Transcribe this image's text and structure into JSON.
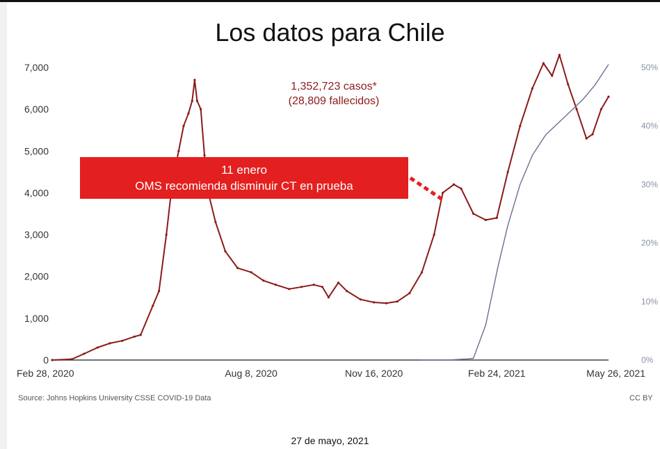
{
  "page": {
    "footer_date": "27 de mayo, 2021",
    "source": "Source: Johns Hopkins University CSSE COVID-19 Data",
    "license": "CC BY"
  },
  "chart_data": {
    "type": "line",
    "title": "Los datos para Chile",
    "annotation_cases": "1,352,723 casos*",
    "annotation_deaths": "(28,809 fallecidos)",
    "callout_line1": "11 enero",
    "callout_line2": "OMS recomienda disminuir CT en prueba",
    "x_ticks": [
      "Feb 28, 2020",
      "Aug 8, 2020",
      "Nov 16, 2020",
      "Feb 24, 2021",
      "May 26, 2021"
    ],
    "x_tick_dates": [
      "2020-02-28",
      "2020-08-08",
      "2020-11-16",
      "2021-02-24",
      "2021-05-26"
    ],
    "x_range": [
      "2020-02-28",
      "2021-05-26"
    ],
    "y_left_ticks": [
      "0",
      "1,000",
      "2,000",
      "3,000",
      "4,000",
      "5,000",
      "6,000",
      "7,000"
    ],
    "y_left_range": [
      0,
      7000
    ],
    "y_right_ticks": [
      "0%",
      "10%",
      "20%",
      "30%",
      "40%",
      "50%"
    ],
    "y_right_range": [
      0,
      50
    ],
    "callout_date": "2021-01-11",
    "colors": {
      "cases": "#8b1a1a",
      "vaccination": "#6a6f8e",
      "callout": "#e41f1f"
    },
    "series": [
      {
        "role": "cases",
        "axis": "left",
        "points": [
          [
            "2020-02-28",
            0
          ],
          [
            "2020-03-15",
            20
          ],
          [
            "2020-03-25",
            150
          ],
          [
            "2020-04-05",
            300
          ],
          [
            "2020-04-15",
            400
          ],
          [
            "2020-04-25",
            460
          ],
          [
            "2020-05-05",
            560
          ],
          [
            "2020-05-10",
            600
          ],
          [
            "2020-05-20",
            1300
          ],
          [
            "2020-05-25",
            1650
          ],
          [
            "2020-05-31",
            3000
          ],
          [
            "2020-06-05",
            4300
          ],
          [
            "2020-06-10",
            5000
          ],
          [
            "2020-06-14",
            5600
          ],
          [
            "2020-06-18",
            5900
          ],
          [
            "2020-06-21",
            6200
          ],
          [
            "2020-06-23",
            6700
          ],
          [
            "2020-06-25",
            6200
          ],
          [
            "2020-06-28",
            6000
          ],
          [
            "2020-07-01",
            4900
          ],
          [
            "2020-07-05",
            3900
          ],
          [
            "2020-07-10",
            3300
          ],
          [
            "2020-07-18",
            2600
          ],
          [
            "2020-07-28",
            2200
          ],
          [
            "2020-08-08",
            2100
          ],
          [
            "2020-08-18",
            1900
          ],
          [
            "2020-08-28",
            1800
          ],
          [
            "2020-09-08",
            1700
          ],
          [
            "2020-09-18",
            1750
          ],
          [
            "2020-09-28",
            1800
          ],
          [
            "2020-10-05",
            1750
          ],
          [
            "2020-10-10",
            1500
          ],
          [
            "2020-10-18",
            1850
          ],
          [
            "2020-10-25",
            1650
          ],
          [
            "2020-11-05",
            1450
          ],
          [
            "2020-11-16",
            1380
          ],
          [
            "2020-11-26",
            1360
          ],
          [
            "2020-12-05",
            1400
          ],
          [
            "2020-12-15",
            1600
          ],
          [
            "2020-12-25",
            2100
          ],
          [
            "2021-01-04",
            3000
          ],
          [
            "2021-01-11",
            4000
          ],
          [
            "2021-01-20",
            4200
          ],
          [
            "2021-01-26",
            4100
          ],
          [
            "2021-02-05",
            3500
          ],
          [
            "2021-02-15",
            3350
          ],
          [
            "2021-02-24",
            3400
          ],
          [
            "2021-03-05",
            4500
          ],
          [
            "2021-03-15",
            5600
          ],
          [
            "2021-03-25",
            6500
          ],
          [
            "2021-04-03",
            7100
          ],
          [
            "2021-04-10",
            6800
          ],
          [
            "2021-04-16",
            7300
          ],
          [
            "2021-04-23",
            6600
          ],
          [
            "2021-04-30",
            6000
          ],
          [
            "2021-05-08",
            5300
          ],
          [
            "2021-05-13",
            5400
          ],
          [
            "2021-05-20",
            6000
          ],
          [
            "2021-05-26",
            6300
          ]
        ]
      },
      {
        "role": "vaccination",
        "axis": "right",
        "points": [
          [
            "2020-12-24",
            0.0
          ],
          [
            "2021-01-15",
            0.0
          ],
          [
            "2021-02-01",
            0.2
          ],
          [
            "2021-02-05",
            0.3
          ],
          [
            "2021-02-15",
            6.0
          ],
          [
            "2021-02-25",
            16.0
          ],
          [
            "2021-03-05",
            23.0
          ],
          [
            "2021-03-15",
            30.0
          ],
          [
            "2021-03-25",
            35.0
          ],
          [
            "2021-04-05",
            38.5
          ],
          [
            "2021-04-15",
            40.5
          ],
          [
            "2021-04-25",
            42.5
          ],
          [
            "2021-05-05",
            44.5
          ],
          [
            "2021-05-15",
            47.0
          ],
          [
            "2021-05-26",
            50.5
          ]
        ]
      }
    ]
  }
}
